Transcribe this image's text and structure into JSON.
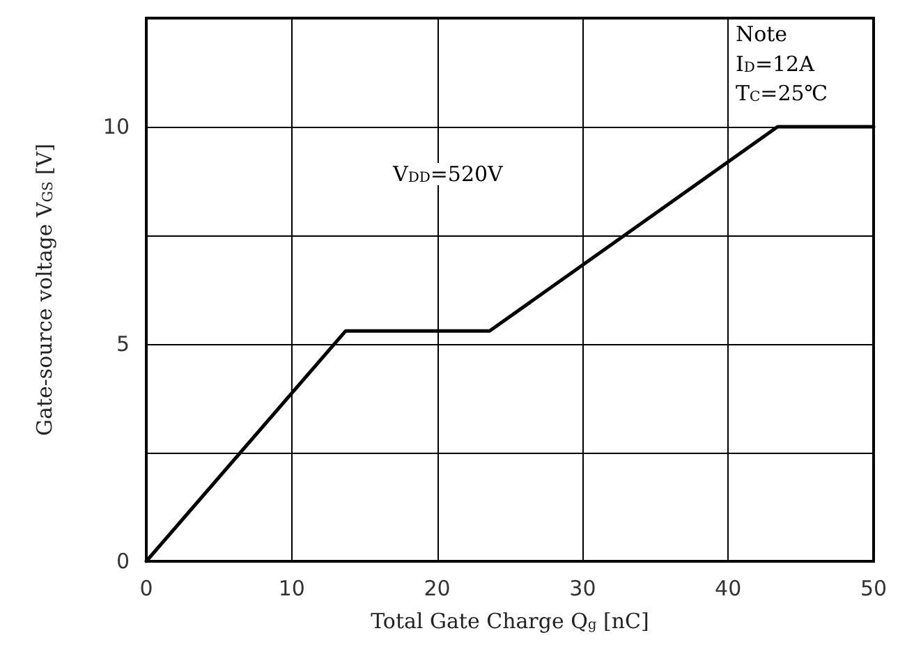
{
  "chart_data": {
    "type": "line",
    "xlabel": "Total Gate Charge Q$_{g}$ [nC]",
    "ylabel": "Gate-source voltage V$_{GS}$ [V]",
    "x": [
      0,
      13.7,
      23.6,
      43.4,
      50
    ],
    "series": [
      {
        "color": "#000000",
        "values": [
          0,
          5.3,
          5.3,
          10,
          10
        ]
      }
    ],
    "xlim": [
      0,
      50
    ],
    "xticks": [
      0,
      10,
      20,
      30,
      40,
      50
    ],
    "ylim": [
      0,
      12.5
    ],
    "yticks": [
      0,
      {
        "value": 2.5,
        "label": null
      },
      5,
      {
        "value": 7.5,
        "label": null
      },
      10,
      {
        "value": 12.5,
        "label": null
      }
    ],
    "grid": true,
    "marker": "none",
    "line_style": "solid",
    "annotations": [
      "V$_{DD}$=520V",
      "Note",
      "I$_{D}$=12A",
      "T$_{C}$=25℃"
    ]
  }
}
